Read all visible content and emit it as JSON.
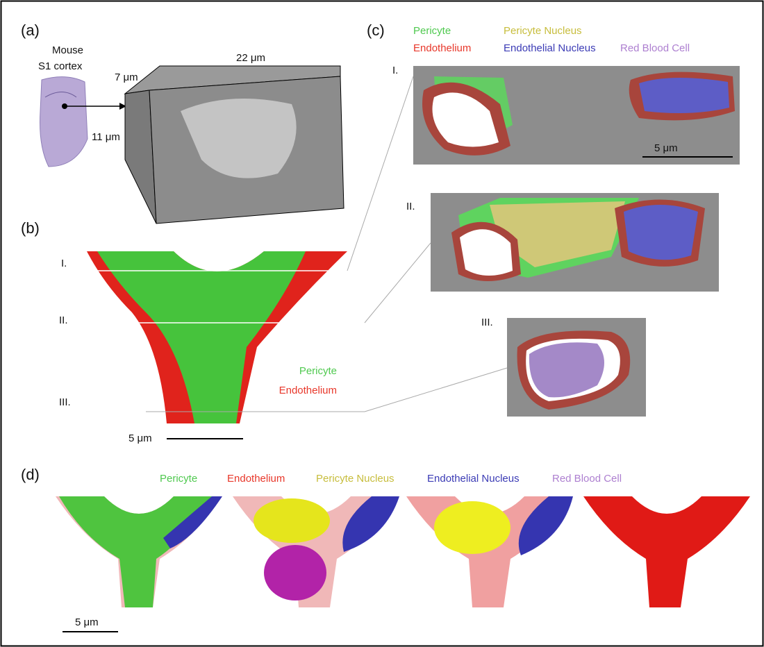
{
  "panels": {
    "a": {
      "label": "(a)",
      "specimen": "Mouse",
      "region": "S1 cortex",
      "depth": "7 μm",
      "width": "22 μm",
      "height": "11 μm"
    },
    "b": {
      "label": "(b)",
      "slices": [
        "I.",
        "II.",
        "III."
      ],
      "legend": [
        "Pericyte",
        "Endothelium"
      ],
      "scale": "5 μm"
    },
    "c": {
      "label": "(c)",
      "legend": [
        "Pericyte",
        "Pericyte Nucleus",
        "Endothelium",
        "Endothelial Nucleus",
        "Red Blood Cell"
      ],
      "slices": [
        "I.",
        "II.",
        "III."
      ],
      "scale": "5 μm"
    },
    "d": {
      "label": "(d)",
      "legend": [
        "Pericyte",
        "Endothelium",
        "Pericyte Nucleus",
        "Endothelial Nucleus",
        "Red Blood Cell"
      ],
      "scale": "5 μm"
    }
  }
}
